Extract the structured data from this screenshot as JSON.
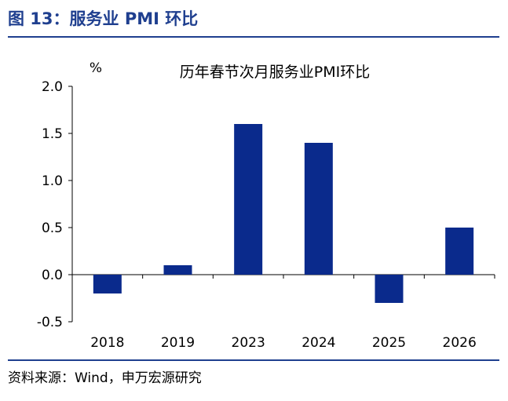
{
  "figure": {
    "title": "图 13：服务业 PMI 环比",
    "source": "资料来源：Wind，申万宏源研究"
  },
  "colors": {
    "accent": "#1f3f8f",
    "bar": "#0a2a8c"
  },
  "chart_data": {
    "type": "bar",
    "title": "历年春节次月服务业PMI环比",
    "ylabel": "%",
    "xlabel": "",
    "categories": [
      "2018",
      "2019",
      "2023",
      "2024",
      "2025",
      "2026"
    ],
    "values": [
      -0.2,
      0.1,
      1.6,
      1.4,
      -0.3,
      0.5
    ],
    "ylim": [
      -0.5,
      2.0
    ],
    "yticks": [
      "-0.5",
      "0.0",
      "0.5",
      "1.0",
      "1.5",
      "2.0"
    ],
    "grid": false,
    "legend": "none"
  }
}
